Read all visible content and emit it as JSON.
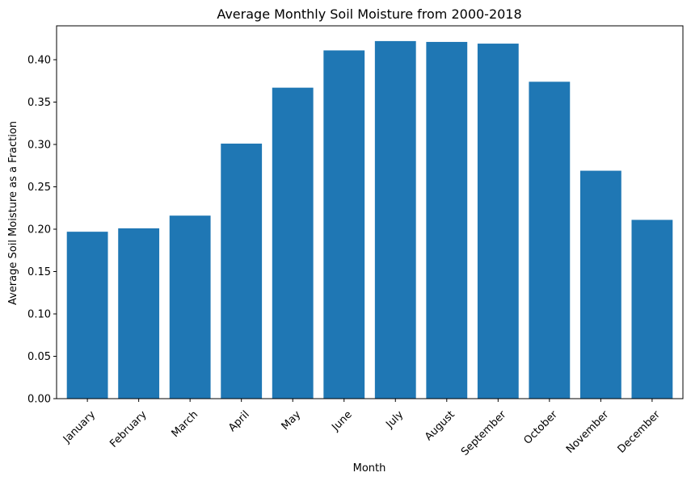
{
  "chart_data": {
    "type": "bar",
    "title": "Average Monthly Soil Moisture from 2000-2018",
    "xlabel": "Month",
    "ylabel": "Average Soil Moisture as a Fraction",
    "categories": [
      "January",
      "February",
      "March",
      "April",
      "May",
      "June",
      "July",
      "August",
      "September",
      "October",
      "November",
      "December"
    ],
    "values": [
      0.197,
      0.201,
      0.216,
      0.301,
      0.367,
      0.411,
      0.422,
      0.421,
      0.419,
      0.374,
      0.269,
      0.211
    ],
    "ylim": [
      0,
      0.44
    ],
    "yticks": [
      "0.00",
      "0.05",
      "0.10",
      "0.15",
      "0.20",
      "0.25",
      "0.30",
      "0.35",
      "0.40"
    ],
    "bar_color": "#1f77b4",
    "grid": false,
    "legend": "none"
  }
}
